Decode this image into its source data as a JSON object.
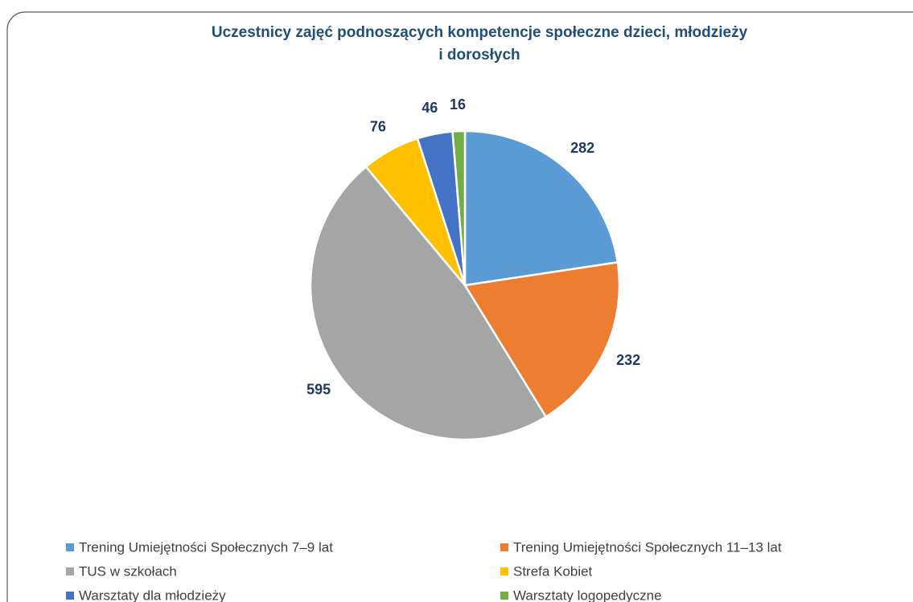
{
  "chart_data": {
    "type": "pie",
    "title": [
      "Uczestnicy zajęć podnoszących kompetencje społeczne dzieci, młodzieży",
      "i dorosłych"
    ],
    "categories": [
      "Trening Umiejętności Społecznych 7–9 lat",
      "Trening Umiejętności Społecznych 11–13 lat",
      "TUS w szkołach",
      "Strefa Kobiet",
      "Warsztaty dla młodzieży",
      "Warsztaty logopedyczne"
    ],
    "values": [
      282,
      232,
      595,
      76,
      46,
      16
    ],
    "colors": [
      "#5b9bd5",
      "#ed7d31",
      "#a5a5a5",
      "#ffc000",
      "#4472c4",
      "#70ad47"
    ],
    "legend": "bottom"
  }
}
